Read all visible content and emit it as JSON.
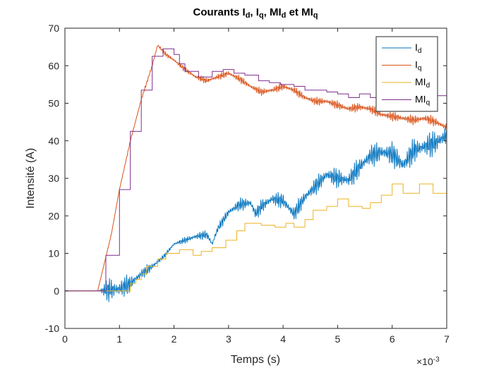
{
  "chart_data": {
    "type": "line",
    "title": {
      "parts": [
        {
          "text": "Courants I",
          "sub": false
        },
        {
          "text": "d",
          "sub": true
        },
        {
          "text": ", I",
          "sub": false
        },
        {
          "text": "q",
          "sub": true
        },
        {
          "text": ", MI",
          "sub": false
        },
        {
          "text": "d",
          "sub": true
        },
        {
          "text": " et MI",
          "sub": false
        },
        {
          "text": "q",
          "sub": true
        }
      ]
    },
    "xlabel": "Temps (s)",
    "ylabel": "Intensité (A)",
    "x_exponent": {
      "base": "×10",
      "exp": "-3"
    },
    "xlim": [
      0,
      7
    ],
    "ylim": [
      -10,
      70
    ],
    "x_ticks": [
      "0",
      "1",
      "2",
      "3",
      "4",
      "5",
      "6",
      "7"
    ],
    "y_ticks": [
      "-10",
      "0",
      "10",
      "20",
      "30",
      "40",
      "50",
      "60",
      "70"
    ],
    "legend_position": "top-right",
    "series": [
      {
        "name": "Id",
        "label_main": "I",
        "label_sub": "d",
        "color": "#0072BD",
        "style": "line",
        "points": [
          [
            0,
            0
          ],
          [
            0.6,
            0
          ],
          [
            0.8,
            0.3
          ],
          [
            1.0,
            0.5
          ],
          [
            1.2,
            2.0
          ],
          [
            1.4,
            4.5
          ],
          [
            1.6,
            6.5
          ],
          [
            1.8,
            9.0
          ],
          [
            2.0,
            12.5
          ],
          [
            2.2,
            13.5
          ],
          [
            2.4,
            14.5
          ],
          [
            2.6,
            15.0
          ],
          [
            2.7,
            12.5
          ],
          [
            2.8,
            16.5
          ],
          [
            3.0,
            21.0
          ],
          [
            3.2,
            23.0
          ],
          [
            3.4,
            23.5
          ],
          [
            3.5,
            20.5
          ],
          [
            3.6,
            22.5
          ],
          [
            3.8,
            24.5
          ],
          [
            4.0,
            24.0
          ],
          [
            4.2,
            20.5
          ],
          [
            4.4,
            25.0
          ],
          [
            4.6,
            28.0
          ],
          [
            4.8,
            31.0
          ],
          [
            5.0,
            30.0
          ],
          [
            5.2,
            29.5
          ],
          [
            5.4,
            33.0
          ],
          [
            5.6,
            36.0
          ],
          [
            5.8,
            37.0
          ],
          [
            6.0,
            36.5
          ],
          [
            6.2,
            33.5
          ],
          [
            6.4,
            37.5
          ],
          [
            6.6,
            38.5
          ],
          [
            6.8,
            39.5
          ],
          [
            7.0,
            41.5
          ]
        ],
        "noise": [
          [
            0.6,
            0
          ],
          [
            0.8,
            3.5
          ],
          [
            1.0,
            3.5
          ],
          [
            1.2,
            2.5
          ],
          [
            1.4,
            1.5
          ],
          [
            1.6,
            1.5
          ],
          [
            1.8,
            0.6
          ],
          [
            2.0,
            0.6
          ],
          [
            2.4,
            1.2
          ],
          [
            2.8,
            1.2
          ],
          [
            3.2,
            1.8
          ],
          [
            3.6,
            2.0
          ],
          [
            4.0,
            2.2
          ],
          [
            4.4,
            2.4
          ],
          [
            4.8,
            2.6
          ],
          [
            5.2,
            3.0
          ],
          [
            5.6,
            3.2
          ],
          [
            6.0,
            3.4
          ],
          [
            6.4,
            3.6
          ],
          [
            7.0,
            3.8
          ]
        ]
      },
      {
        "name": "Iq",
        "label_main": "I",
        "label_sub": "q",
        "color": "#D95319",
        "style": "line",
        "points": [
          [
            0,
            0
          ],
          [
            0.6,
            0
          ],
          [
            0.7,
            6.0
          ],
          [
            0.85,
            15.0
          ],
          [
            1.0,
            27.0
          ],
          [
            1.2,
            40.0
          ],
          [
            1.4,
            51.0
          ],
          [
            1.6,
            60.0
          ],
          [
            1.7,
            65.5
          ],
          [
            1.85,
            63.0
          ],
          [
            2.0,
            61.5
          ],
          [
            2.2,
            59.0
          ],
          [
            2.4,
            57.0
          ],
          [
            2.6,
            56.0
          ],
          [
            2.8,
            57.0
          ],
          [
            3.0,
            58.0
          ],
          [
            3.2,
            56.5
          ],
          [
            3.4,
            54.5
          ],
          [
            3.6,
            53.0
          ],
          [
            3.8,
            53.5
          ],
          [
            4.0,
            54.5
          ],
          [
            4.2,
            53.5
          ],
          [
            4.4,
            51.5
          ],
          [
            4.6,
            50.5
          ],
          [
            4.8,
            50.5
          ],
          [
            5.0,
            49.5
          ],
          [
            5.2,
            48.5
          ],
          [
            5.4,
            49.0
          ],
          [
            5.6,
            48.5
          ],
          [
            5.8,
            47.0
          ],
          [
            6.0,
            46.5
          ],
          [
            6.2,
            46.0
          ],
          [
            6.4,
            45.5
          ],
          [
            6.6,
            46.0
          ],
          [
            6.8,
            45.0
          ],
          [
            7.0,
            43.5
          ]
        ],
        "noise": [
          [
            0.6,
            0
          ],
          [
            1.6,
            0.5
          ],
          [
            2.2,
            0.8
          ],
          [
            3.0,
            1.0
          ],
          [
            4.0,
            1.1
          ],
          [
            5.0,
            1.2
          ],
          [
            6.0,
            1.3
          ],
          [
            7.0,
            1.4
          ]
        ]
      },
      {
        "name": "MId",
        "label_main": "MI",
        "label_sub": "d",
        "color": "#EDB120",
        "style": "step",
        "points": [
          [
            0,
            0
          ],
          [
            1.2,
            2.0
          ],
          [
            1.3,
            3.0
          ],
          [
            1.4,
            4.5
          ],
          [
            1.5,
            6.5
          ],
          [
            1.7,
            8.5
          ],
          [
            1.85,
            10.0
          ],
          [
            2.1,
            11.0
          ],
          [
            2.35,
            9.5
          ],
          [
            2.5,
            10.5
          ],
          [
            2.7,
            11.5
          ],
          [
            2.95,
            13.5
          ],
          [
            3.15,
            16.0
          ],
          [
            3.3,
            18.0
          ],
          [
            3.6,
            17.5
          ],
          [
            3.85,
            17.0
          ],
          [
            4.05,
            18.0
          ],
          [
            4.2,
            17.0
          ],
          [
            4.4,
            19.0
          ],
          [
            4.55,
            21.5
          ],
          [
            4.8,
            22.5
          ],
          [
            5.0,
            24.5
          ],
          [
            5.2,
            22.5
          ],
          [
            5.45,
            22.0
          ],
          [
            5.6,
            23.5
          ],
          [
            5.8,
            25.5
          ],
          [
            6.0,
            28.5
          ],
          [
            6.2,
            26.0
          ],
          [
            6.5,
            28.5
          ],
          [
            6.75,
            26.0
          ],
          [
            7.0,
            32.5
          ]
        ]
      },
      {
        "name": "MIq",
        "label_main": "MI",
        "label_sub": "q",
        "color": "#7E2F8E",
        "style": "step",
        "points": [
          [
            0,
            0
          ],
          [
            0.6,
            0
          ],
          [
            0.75,
            9.5
          ],
          [
            1.0,
            27.0
          ],
          [
            1.2,
            42.5
          ],
          [
            1.4,
            53.5
          ],
          [
            1.6,
            62.5
          ],
          [
            1.8,
            64.5
          ],
          [
            2.0,
            63.0
          ],
          [
            2.1,
            60.5
          ],
          [
            2.2,
            58.5
          ],
          [
            2.45,
            57.0
          ],
          [
            2.7,
            58.5
          ],
          [
            2.9,
            59.0
          ],
          [
            3.1,
            58.0
          ],
          [
            3.3,
            57.5
          ],
          [
            3.55,
            56.0
          ],
          [
            3.75,
            55.5
          ],
          [
            3.95,
            55.0
          ],
          [
            4.2,
            54.5
          ],
          [
            4.4,
            53.5
          ],
          [
            4.6,
            53.5
          ],
          [
            4.8,
            53.0
          ],
          [
            5.0,
            52.5
          ],
          [
            5.2,
            51.5
          ],
          [
            5.4,
            52.5
          ],
          [
            5.6,
            51.5
          ],
          [
            5.8,
            52.0
          ],
          [
            6.0,
            51.5
          ],
          [
            6.2,
            51.5
          ],
          [
            6.4,
            52.0
          ],
          [
            6.6,
            51.5
          ],
          [
            6.8,
            52.0
          ],
          [
            7.0,
            51.0
          ]
        ]
      }
    ]
  }
}
